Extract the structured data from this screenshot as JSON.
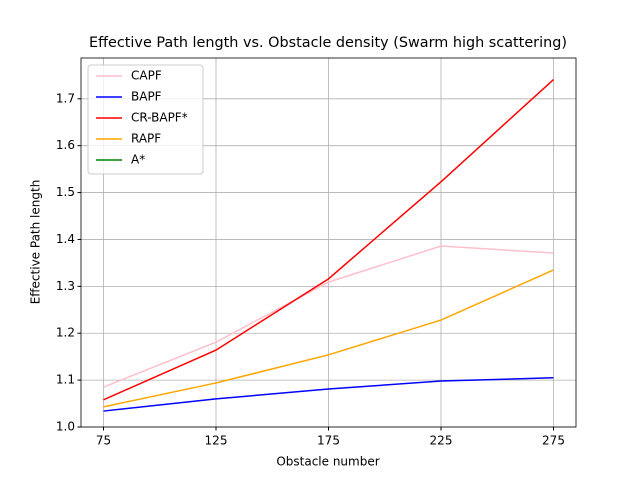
{
  "chart_data": {
    "type": "line",
    "title": "Effective Path length vs. Obstacle density (Swarm high scattering)",
    "xlabel": "Obstacle number",
    "ylabel": "Effective Path length",
    "x": [
      75,
      125,
      175,
      225,
      275
    ],
    "series": [
      {
        "name": "CAPF",
        "color": "pink",
        "values": [
          1.085,
          1.181,
          1.309,
          1.386,
          1.371
        ]
      },
      {
        "name": "BAPF",
        "color": "blue",
        "values": [
          1.034,
          1.06,
          1.081,
          1.098,
          1.105
        ]
      },
      {
        "name": "CR-BAPF*",
        "color": "red",
        "values": [
          1.058,
          1.164,
          1.316,
          1.523,
          1.741
        ]
      },
      {
        "name": "RAPF",
        "color": "orange",
        "values": [
          1.043,
          1.094,
          1.154,
          1.228,
          1.335
        ]
      },
      {
        "name": "A*",
        "color": "green",
        "values": [
          null,
          null,
          null,
          null,
          null
        ]
      }
    ],
    "xlim": [
      65,
      285
    ],
    "ylim": [
      1.0,
      1.787
    ],
    "xticks": [
      75,
      125,
      175,
      225,
      275
    ],
    "yticks": [
      {
        "value": 1.0,
        "label": "1.0"
      },
      1.1,
      1.2,
      1.3,
      1.4,
      1.5,
      1.6,
      1.7
    ],
    "grid": true,
    "legend": "upper left"
  }
}
